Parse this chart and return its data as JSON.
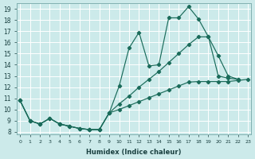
{
  "xlabel": "Humidex (Indice chaleur)",
  "bg_color": "#cceaea",
  "line_color": "#1a6b5a",
  "xlim_min": -0.3,
  "xlim_max": 23.3,
  "ylim_min": 7.8,
  "ylim_max": 19.5,
  "line1_x": [
    0,
    1,
    2,
    3,
    4,
    5,
    6,
    7,
    8,
    9,
    10,
    11,
    12,
    13,
    14,
    15,
    16,
    17,
    18,
    19,
    20,
    21,
    22
  ],
  "line1_y": [
    10.8,
    9.0,
    8.7,
    9.2,
    8.7,
    8.5,
    8.3,
    8.2,
    8.2,
    9.7,
    12.1,
    15.5,
    16.9,
    13.9,
    14.0,
    18.2,
    18.2,
    19.2,
    18.1,
    16.5,
    14.8,
    13.0,
    12.7
  ],
  "line2_x": [
    0,
    1,
    2,
    3,
    4,
    5,
    6,
    7,
    8,
    9,
    10,
    11,
    12,
    13,
    14,
    15,
    16,
    17,
    18,
    19,
    20,
    21,
    22
  ],
  "line2_y": [
    10.8,
    9.0,
    8.7,
    9.2,
    8.7,
    8.5,
    8.3,
    8.2,
    8.2,
    9.7,
    10.5,
    11.2,
    12.0,
    12.7,
    13.4,
    14.2,
    15.0,
    15.8,
    16.5,
    16.5,
    13.0,
    12.8,
    12.7
  ],
  "line3_x": [
    0,
    1,
    2,
    3,
    4,
    5,
    6,
    7,
    8,
    9,
    10,
    11,
    12,
    13,
    14,
    15,
    16,
    17,
    18,
    19,
    20,
    21,
    22,
    23
  ],
  "line3_y": [
    10.8,
    9.0,
    8.7,
    9.2,
    8.7,
    8.5,
    8.3,
    8.2,
    8.2,
    9.7,
    10.0,
    10.35,
    10.7,
    11.05,
    11.4,
    11.75,
    12.1,
    12.45,
    12.5,
    12.5,
    12.5,
    12.5,
    12.6,
    12.7
  ]
}
